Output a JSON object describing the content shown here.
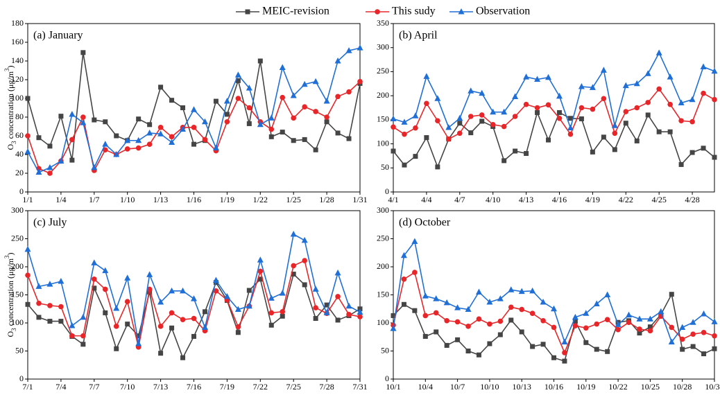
{
  "chart_data": [
    {
      "type": "line",
      "title": "(a) January",
      "y_label": [
        "O",
        "3",
        " concentration (μg/m",
        "3",
        ")"
      ],
      "categories": [
        "1/1",
        null,
        null,
        "1/4",
        null,
        null,
        "1/7",
        null,
        null,
        "1/10",
        null,
        null,
        "1/13",
        null,
        null,
        "1/16",
        null,
        null,
        "1/19",
        null,
        null,
        "1/22",
        null,
        null,
        "1/25",
        null,
        null,
        "1/28",
        null,
        null,
        "1/31"
      ],
      "ylim": [
        0,
        180
      ],
      "yticks": [
        0,
        20,
        40,
        60,
        80,
        100,
        120,
        140,
        160,
        180
      ],
      "series": [
        {
          "name": "MEIC-revision",
          "color": "#454545",
          "marker": "square",
          "values": [
            100,
            58,
            49,
            81,
            34,
            149,
            77,
            75,
            60,
            55,
            78,
            72,
            112,
            98,
            90,
            51,
            55,
            97,
            83,
            119,
            73,
            140,
            59,
            64,
            55,
            56,
            45,
            75,
            63,
            57,
            116
          ]
        },
        {
          "name": "This sudy",
          "color": "#e8262a",
          "marker": "circle",
          "values": [
            60,
            25,
            20,
            33,
            56,
            80,
            23,
            45,
            40,
            46,
            47,
            51,
            69,
            59,
            69,
            69,
            56,
            44,
            75,
            100,
            90,
            75,
            67,
            101,
            79,
            91,
            86,
            80,
            102,
            107,
            118
          ]
        },
        {
          "name": "Observation",
          "color": "#1f6fd6",
          "marker": "triangle",
          "values": [
            43,
            21,
            26,
            33,
            83,
            74,
            26,
            51,
            40,
            55,
            55,
            63,
            62,
            53,
            67,
            88,
            75,
            47,
            97,
            125,
            111,
            72,
            79,
            133,
            103,
            115,
            118,
            97,
            140,
            151,
            154
          ]
        }
      ]
    },
    {
      "type": "line",
      "title": "(b) April",
      "categories": [
        "4/1",
        null,
        null,
        "4/4",
        null,
        null,
        "4/7",
        null,
        null,
        "4/10",
        null,
        null,
        "4/13",
        null,
        null,
        "4/16",
        null,
        null,
        "4/19",
        null,
        null,
        "4/22",
        null,
        null,
        "4/25",
        null,
        null,
        "4/28",
        null,
        null
      ],
      "ylim": [
        0,
        350
      ],
      "yticks": [
        0,
        50,
        100,
        150,
        200,
        250,
        300,
        350
      ],
      "series": [
        {
          "name": "MEIC-revision",
          "color": "#454545",
          "marker": "square",
          "values": [
            85,
            56,
            74,
            113,
            52,
            110,
            143,
            123,
            147,
            136,
            65,
            85,
            80,
            165,
            108,
            165,
            153,
            152,
            83,
            114,
            88,
            143,
            106,
            160,
            125,
            125,
            57,
            82,
            91,
            72
          ]
        },
        {
          "name": "This sudy",
          "color": "#e8262a",
          "marker": "circle",
          "values": [
            135,
            120,
            133,
            184,
            148,
            110,
            122,
            157,
            160,
            140,
            136,
            157,
            182,
            175,
            181,
            153,
            120,
            175,
            172,
            194,
            122,
            167,
            175,
            186,
            214,
            182,
            148,
            146,
            205,
            192
          ]
        },
        {
          "name": "Observation",
          "color": "#1f6fd6",
          "marker": "triangle",
          "values": [
            152,
            145,
            158,
            240,
            194,
            134,
            153,
            210,
            205,
            166,
            166,
            198,
            239,
            234,
            238,
            199,
            133,
            219,
            217,
            253,
            138,
            221,
            225,
            246,
            289,
            239,
            185,
            192,
            260,
            251
          ]
        }
      ]
    },
    {
      "type": "line",
      "title": "(c) July",
      "y_label": [
        "O",
        "3",
        " concentration (μg/m",
        "3",
        ")"
      ],
      "categories": [
        "7/1",
        null,
        null,
        "7/4",
        null,
        null,
        "7/7",
        null,
        null,
        "7/10",
        null,
        null,
        "7/13",
        null,
        null,
        "7/16",
        null,
        null,
        "7/19",
        null,
        null,
        "7/22",
        null,
        null,
        "7/25",
        null,
        null,
        "7/28",
        null,
        null,
        "7/31"
      ],
      "ylim": [
        0,
        300
      ],
      "yticks": [
        0,
        50,
        100,
        150,
        200,
        250,
        300
      ],
      "series": [
        {
          "name": "MEIC-revision",
          "color": "#454545",
          "marker": "square",
          "values": [
            133,
            110,
            103,
            103,
            76,
            62,
            162,
            118,
            54,
            98,
            77,
            155,
            46,
            91,
            38,
            76,
            120,
            172,
            140,
            83,
            158,
            178,
            96,
            112,
            187,
            168,
            108,
            132,
            105,
            113,
            125
          ]
        },
        {
          "name": "This sudy",
          "color": "#e8262a",
          "marker": "circle",
          "values": [
            185,
            135,
            131,
            129,
            77,
            77,
            178,
            160,
            94,
            138,
            57,
            160,
            94,
            118,
            106,
            108,
            86,
            157,
            141,
            93,
            130,
            192,
            118,
            120,
            202,
            211,
            127,
            117,
            147,
            115,
            111
          ]
        },
        {
          "name": "Observation",
          "color": "#1f6fd6",
          "marker": "triangle",
          "values": [
            231,
            165,
            169,
            174,
            95,
            110,
            207,
            193,
            126,
            180,
            63,
            186,
            137,
            157,
            157,
            143,
            92,
            176,
            147,
            124,
            130,
            212,
            144,
            153,
            258,
            247,
            160,
            118,
            189,
            130,
            119
          ]
        }
      ]
    },
    {
      "type": "line",
      "title": "(d) October",
      "categories": [
        "10/1",
        null,
        null,
        "10/4",
        null,
        null,
        "10/7",
        null,
        null,
        "10/10",
        null,
        null,
        "10/13",
        null,
        null,
        "10/16",
        null,
        null,
        "10/19",
        null,
        null,
        "10/22",
        null,
        null,
        "10/25",
        null,
        null,
        "10/28",
        null,
        null,
        "10/31"
      ],
      "ylim": [
        0,
        300
      ],
      "yticks": [
        0,
        50,
        100,
        150,
        200,
        250,
        300
      ],
      "series": [
        {
          "name": "MEIC-revision",
          "color": "#454545",
          "marker": "square",
          "values": [
            113,
            133,
            122,
            76,
            84,
            60,
            70,
            50,
            43,
            63,
            79,
            105,
            84,
            58,
            62,
            38,
            32,
            103,
            65,
            53,
            49,
            101,
            104,
            82,
            93,
            115,
            151,
            53,
            58,
            45,
            54
          ]
        },
        {
          "name": "This sudy",
          "color": "#e8262a",
          "marker": "circle",
          "values": [
            96,
            178,
            190,
            113,
            118,
            104,
            102,
            94,
            107,
            98,
            103,
            128,
            124,
            117,
            104,
            92,
            47,
            95,
            91,
            98,
            106,
            88,
            101,
            89,
            86,
            112,
            92,
            71,
            80,
            83,
            77
          ]
        },
        {
          "name": "Observation",
          "color": "#1f6fd6",
          "marker": "triangle",
          "values": [
            90,
            220,
            245,
            148,
            143,
            136,
            127,
            124,
            155,
            137,
            143,
            159,
            156,
            157,
            137,
            125,
            66,
            110,
            117,
            134,
            150,
            97,
            114,
            107,
            107,
            120,
            66,
            92,
            101,
            116,
            102
          ]
        }
      ]
    }
  ]
}
